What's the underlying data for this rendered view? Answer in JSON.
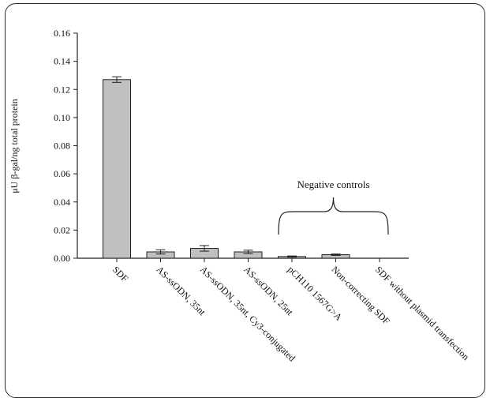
{
  "chart_data": {
    "type": "bar",
    "title": "",
    "xlabel": "",
    "ylabel": "μU β-gal/ng total protein",
    "ylim": [
      0,
      0.16
    ],
    "yticks": [
      "0.00",
      "0.02",
      "0.04",
      "0.06",
      "0.08",
      "0.10",
      "0.12",
      "0.14",
      "0.16"
    ],
    "categories": [
      "SDF",
      "AS-ssODN, 35nt",
      "AS-ssODN, 35nt, Cy3-conjugated",
      "AS-ssODN, 25nt",
      "pCH110 1567G>A",
      "Non-correcting SDF",
      "SDF without plasmid transfection"
    ],
    "values": [
      0.127,
      0.0045,
      0.007,
      0.0045,
      0.0012,
      0.0025,
      0.0
    ],
    "errors": [
      0.002,
      0.0015,
      0.002,
      0.0012,
      0.0004,
      0.0005,
      0.0
    ],
    "bar_color": "#c0c0c0",
    "grid": false,
    "annotation": {
      "text": "Negative controls",
      "spans": [
        "pCH110 1567G>A",
        "SDF without plasmid transfection"
      ]
    }
  }
}
